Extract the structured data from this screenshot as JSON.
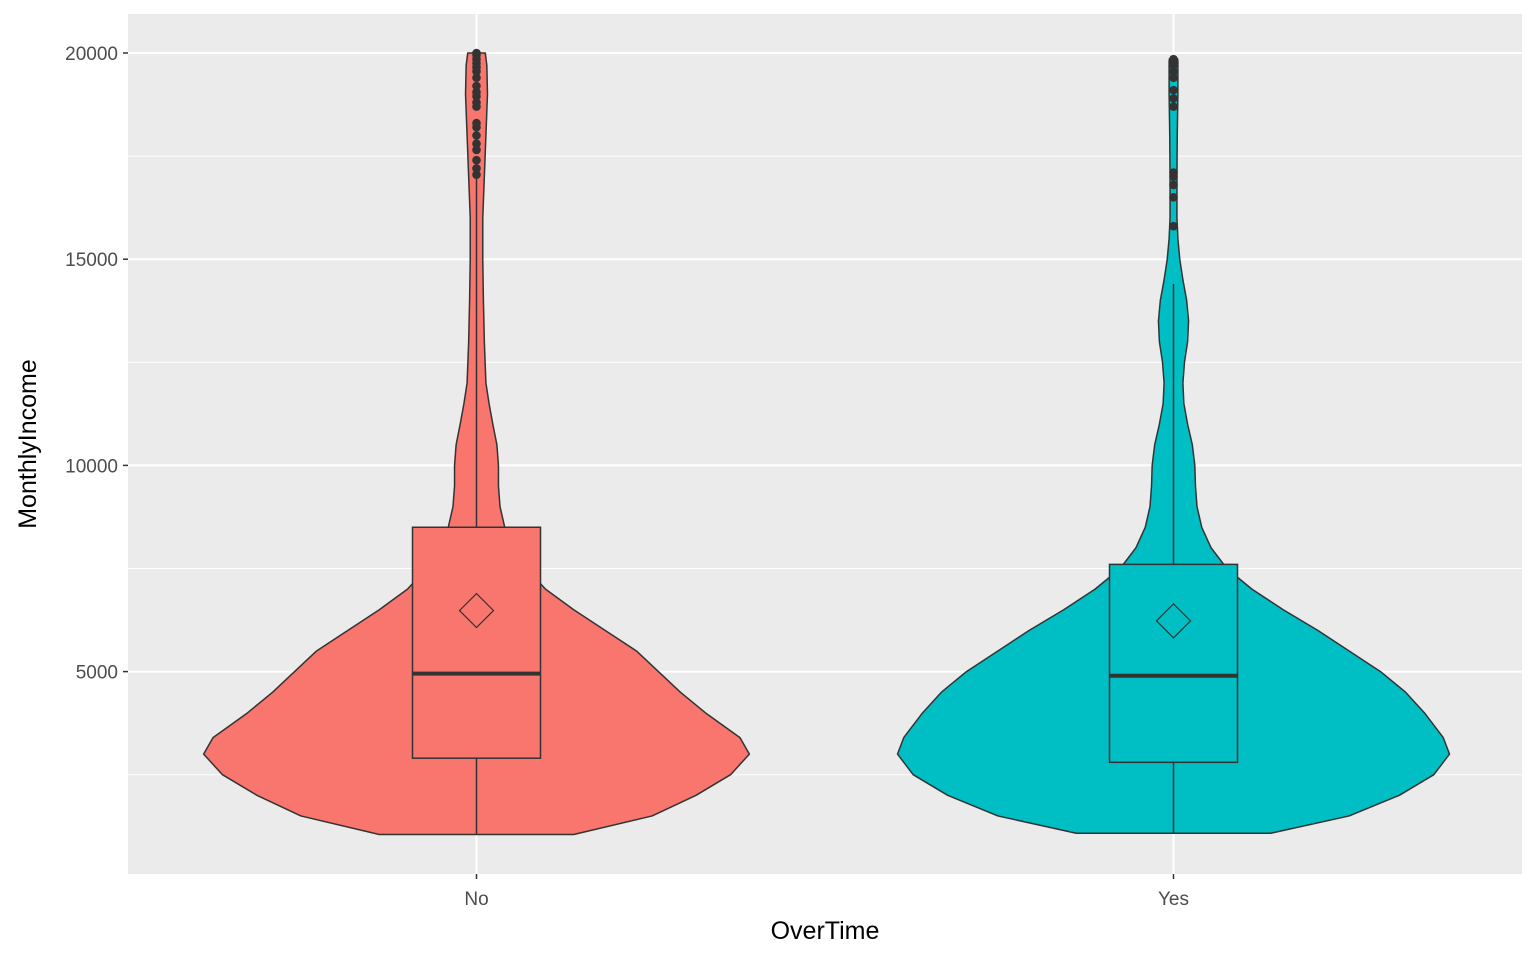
{
  "chart_data": {
    "type": "violin",
    "xlabel": "OverTime",
    "ylabel": "MonthlyIncome",
    "categories": [
      "No",
      "Yes"
    ],
    "ylim": [
      1009,
      20000
    ],
    "yticks": [
      5000,
      10000,
      15000,
      20000
    ],
    "grid": true,
    "legend": "none",
    "colors": {
      "panel": "#ebebeb",
      "grid": "#ffffff",
      "outline": "#333333",
      "No": "#f8766d",
      "Yes": "#00bfc4"
    },
    "series": [
      {
        "name": "No",
        "fill": "#f8766d",
        "box": {
          "min": 1051,
          "q1": 2900,
          "median": 4950,
          "q3": 8500,
          "whisker_high": 17000,
          "max": 19999
        },
        "mean": 6480,
        "outliers": [
          17050,
          17200,
          17400,
          17650,
          17800,
          18000,
          18200,
          18300,
          18700,
          18800,
          18950,
          19050,
          19200,
          19400,
          19550,
          19650,
          19750,
          19850,
          19950,
          19999
        ],
        "density": [
          [
            1051,
            0.31
          ],
          [
            1500,
            0.56
          ],
          [
            2000,
            0.7
          ],
          [
            2500,
            0.81
          ],
          [
            3000,
            0.87
          ],
          [
            3400,
            0.84
          ],
          [
            4000,
            0.73
          ],
          [
            4500,
            0.65
          ],
          [
            5000,
            0.58
          ],
          [
            5500,
            0.51
          ],
          [
            6000,
            0.41
          ],
          [
            6500,
            0.31
          ],
          [
            7000,
            0.22
          ],
          [
            7500,
            0.16
          ],
          [
            8000,
            0.12
          ],
          [
            8500,
            0.09
          ],
          [
            9000,
            0.075
          ],
          [
            9500,
            0.07
          ],
          [
            10000,
            0.07
          ],
          [
            10500,
            0.065
          ],
          [
            11000,
            0.052
          ],
          [
            11500,
            0.04
          ],
          [
            12000,
            0.03
          ],
          [
            13000,
            0.025
          ],
          [
            14000,
            0.022
          ],
          [
            15000,
            0.02
          ],
          [
            16000,
            0.02
          ],
          [
            17000,
            0.025
          ],
          [
            18000,
            0.03
          ],
          [
            19000,
            0.035
          ],
          [
            19700,
            0.033
          ],
          [
            20000,
            0.028
          ]
        ]
      },
      {
        "name": "Yes",
        "fill": "#00bfc4",
        "box": {
          "min": 1081,
          "q1": 2800,
          "median": 4900,
          "q3": 7600,
          "whisker_high": 14400,
          "max": 19859
        },
        "mean": 6230,
        "outliers": [
          15800,
          16500,
          16800,
          17000,
          17100,
          18700,
          18900,
          19100,
          19400,
          19550,
          19700,
          19800,
          19850
        ],
        "density": [
          [
            1081,
            0.31
          ],
          [
            1500,
            0.56
          ],
          [
            2000,
            0.72
          ],
          [
            2500,
            0.83
          ],
          [
            3000,
            0.88
          ],
          [
            3400,
            0.86
          ],
          [
            4000,
            0.8
          ],
          [
            4500,
            0.74
          ],
          [
            5000,
            0.66
          ],
          [
            5500,
            0.56
          ],
          [
            6000,
            0.46
          ],
          [
            6500,
            0.35
          ],
          [
            7000,
            0.25
          ],
          [
            7500,
            0.17
          ],
          [
            8000,
            0.12
          ],
          [
            8500,
            0.09
          ],
          [
            9000,
            0.075
          ],
          [
            9500,
            0.07
          ],
          [
            10000,
            0.068
          ],
          [
            10500,
            0.06
          ],
          [
            11000,
            0.045
          ],
          [
            11500,
            0.033
          ],
          [
            12000,
            0.03
          ],
          [
            12500,
            0.035
          ],
          [
            13000,
            0.045
          ],
          [
            13500,
            0.048
          ],
          [
            14000,
            0.042
          ],
          [
            14500,
            0.03
          ],
          [
            15000,
            0.02
          ],
          [
            15500,
            0.014
          ],
          [
            16000,
            0.011
          ],
          [
            17000,
            0.011
          ],
          [
            18000,
            0.012
          ],
          [
            19000,
            0.014
          ],
          [
            19800,
            0.014
          ],
          [
            19859,
            0.013
          ]
        ]
      }
    ]
  }
}
